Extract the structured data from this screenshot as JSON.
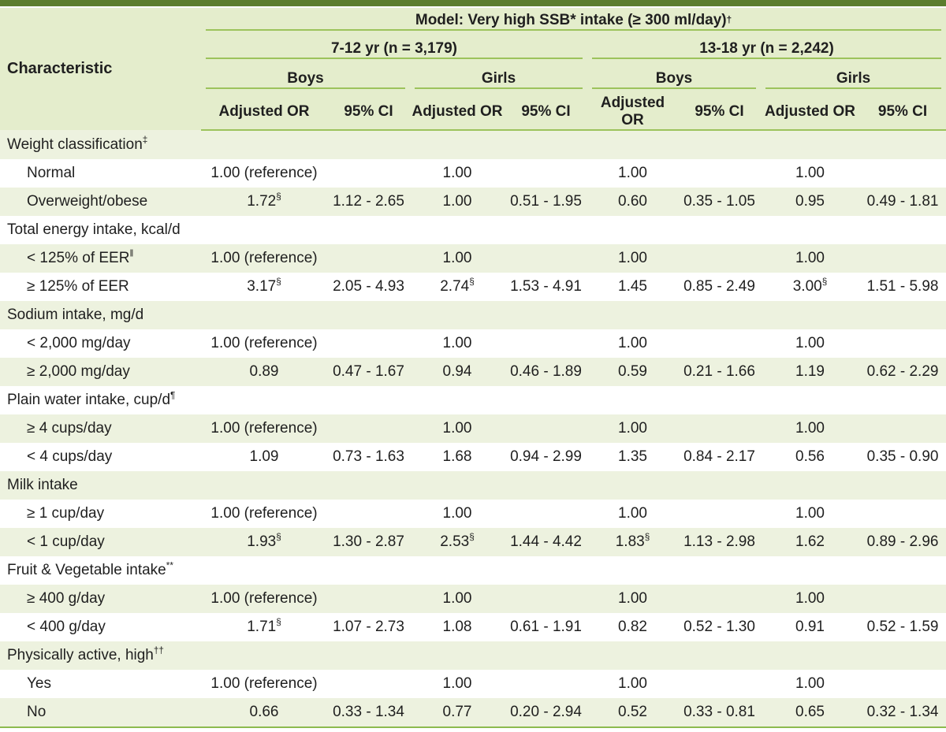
{
  "colors": {
    "top_bar": "#5c7d2e",
    "header_background": "#e4edcc",
    "row_stripe_green": "#edf2df",
    "rule_line": "#9cc35c",
    "bottom_border": "#8cbb4e"
  },
  "table": {
    "characteristic_label": "Characteristic",
    "model_header": "Model: Very high SSB* intake (≥ 300 ml/day)",
    "model_header_sup": "†",
    "age_groups": [
      {
        "label": "7-12 yr (n = 3,179)"
      },
      {
        "label": "13-18 yr (n = 2,242)"
      }
    ],
    "sex_groups": [
      "Boys",
      "Girls",
      "Boys",
      "Girls"
    ],
    "measure_headers": [
      "Adjusted OR",
      "95% CI",
      "Adjusted OR",
      "95% CI",
      "Adjusted OR",
      "95% CI",
      "Adjusted OR",
      "95% CI"
    ],
    "rows": [
      {
        "type": "section",
        "label": "Weight classification^‡"
      },
      {
        "type": "item",
        "label": "Normal",
        "cells": [
          "1.00 (reference)",
          "",
          "1.00",
          "",
          "1.00",
          "",
          "1.00",
          ""
        ]
      },
      {
        "type": "item",
        "label": "Overweight/obese",
        "cells": [
          "1.72^§",
          "1.12 - 2.65",
          "1.00",
          "0.51 - 1.95",
          "0.60",
          "0.35 - 1.05",
          "0.95",
          "0.49 - 1.81"
        ]
      },
      {
        "type": "section",
        "label": "Total energy intake, kcal/d"
      },
      {
        "type": "item",
        "label": "< 125% of EER^‖",
        "cells": [
          "1.00 (reference)",
          "",
          "1.00",
          "",
          "1.00",
          "",
          "1.00",
          ""
        ]
      },
      {
        "type": "item",
        "label": "≥ 125% of EER",
        "cells": [
          "3.17^§",
          "2.05 - 4.93",
          "2.74^§",
          "1.53 - 4.91",
          "1.45",
          "0.85 - 2.49",
          "3.00^§",
          "1.51 - 5.98"
        ]
      },
      {
        "type": "section",
        "label": "Sodium intake, mg/d"
      },
      {
        "type": "item",
        "label": "< 2,000 mg/day",
        "cells": [
          "1.00 (reference)",
          "",
          "1.00",
          "",
          "1.00",
          "",
          "1.00",
          ""
        ]
      },
      {
        "type": "item",
        "label": "≥ 2,000 mg/day",
        "cells": [
          "0.89",
          "0.47 - 1.67",
          "0.94",
          "0.46 - 1.89",
          "0.59",
          "0.21 - 1.66",
          "1.19",
          "0.62 - 2.29"
        ]
      },
      {
        "type": "section",
        "label": "Plain water intake, cup/d^¶"
      },
      {
        "type": "item",
        "label": "≥ 4 cups/day",
        "cells": [
          "1.00 (reference)",
          "",
          "1.00",
          "",
          "1.00",
          "",
          "1.00",
          ""
        ]
      },
      {
        "type": "item",
        "label": "< 4 cups/day",
        "cells": [
          "1.09",
          "0.73 - 1.63",
          "1.68",
          "0.94 - 2.99",
          "1.35",
          "0.84 - 2.17",
          "0.56",
          "0.35 - 0.90"
        ]
      },
      {
        "type": "section",
        "label": "Milk intake"
      },
      {
        "type": "item",
        "label": "≥ 1 cup/day",
        "cells": [
          "1.00 (reference)",
          "",
          "1.00",
          "",
          "1.00",
          "",
          "1.00",
          ""
        ]
      },
      {
        "type": "item",
        "label": "< 1 cup/day",
        "cells": [
          "1.93^§",
          "1.30 - 2.87",
          "2.53^§",
          "1.44 - 4.42",
          "1.83^§",
          "1.13 - 2.98",
          "1.62",
          "0.89 - 2.96"
        ]
      },
      {
        "type": "section",
        "label": "Fruit & Vegetable intake^**"
      },
      {
        "type": "item",
        "label": "≥ 400 g/day",
        "cells": [
          "1.00 (reference)",
          "",
          "1.00",
          "",
          "1.00",
          "",
          "1.00",
          ""
        ]
      },
      {
        "type": "item",
        "label": "< 400 g/day",
        "cells": [
          "1.71^§",
          "1.07 - 2.73",
          "1.08",
          "0.61 - 1.91",
          "0.82",
          "0.52 - 1.30",
          "0.91",
          "0.52 - 1.59"
        ]
      },
      {
        "type": "section",
        "label": "Physically active, high^††"
      },
      {
        "type": "item",
        "label": "Yes",
        "cells": [
          "1.00 (reference)",
          "",
          "1.00",
          "",
          "1.00",
          "",
          "1.00",
          ""
        ]
      },
      {
        "type": "item",
        "label": "No",
        "cells": [
          "0.66",
          "0.33 - 1.34",
          "0.77",
          "0.20 - 2.94",
          "0.52",
          "0.33 - 0.81",
          "0.65",
          "0.32 - 1.34"
        ]
      }
    ]
  }
}
